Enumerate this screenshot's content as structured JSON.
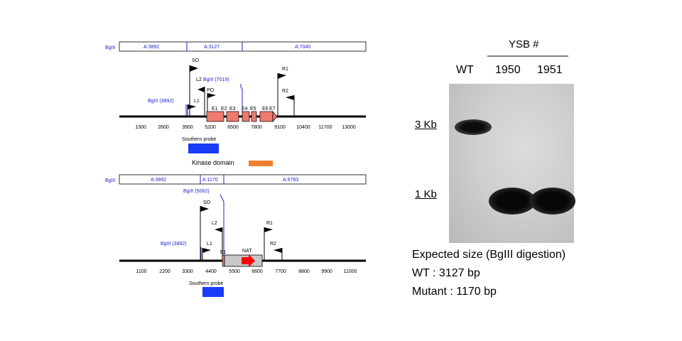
{
  "colors": {
    "label_blue": "#2222cc",
    "exon_red": "#ef7a6f",
    "kinase_orange": "#f08030",
    "probe_blue": "#1a3cf5",
    "nat_red": "#ff0000",
    "nat_box_gray": "#c8c8c8"
  },
  "wt_map": {
    "enzyme_label": "BgIII",
    "fragments": [
      "A:3892",
      "A:3127",
      "A:7040"
    ],
    "markers": {
      "so": "SO",
      "l2": "L2",
      "bglii_right": "BgIII (7019)",
      "po": "PO",
      "bglii_left": "BgIII (3892)",
      "l1": "L1",
      "r1": "R1",
      "r2": "R2"
    },
    "exons": [
      "E1",
      "E2",
      "E3",
      "E4",
      "E5",
      "E6",
      "E7"
    ],
    "ticks": [
      "1300",
      "2600",
      "3900",
      "5200",
      "6500",
      "7800",
      "9100",
      "10400",
      "11700",
      "13000"
    ],
    "probe_label": "Southern probe"
  },
  "kinase_label": "Kinase domain",
  "mut_map": {
    "enzyme_label": "BgIII",
    "fragments": [
      "A:3892",
      "A:1170",
      "A:6783"
    ],
    "markers": {
      "bglii_right": "BgIII (5062)",
      "so": "SO",
      "l2": "L2",
      "r1": "R1",
      "bglii_left": "BgIII (3892)",
      "l1": "L1",
      "r2": "R2",
      "e1": "E1",
      "nat": "NAT"
    },
    "ticks": [
      "1100",
      "2200",
      "3300",
      "4400",
      "5500",
      "6600",
      "7700",
      "8800",
      "9900",
      "11000"
    ],
    "probe_label": "Southern probe"
  },
  "blot": {
    "group_label": "YSB #",
    "lanes": [
      "WT",
      "1950",
      "1951"
    ],
    "marker_3kb": "3 Kb",
    "marker_1kb": "1 Kb",
    "expected_title": "Expected size (BgIII digestion)",
    "wt_size": "WT : 3127 bp",
    "mutant_size": "Mutant : 1170 bp"
  }
}
